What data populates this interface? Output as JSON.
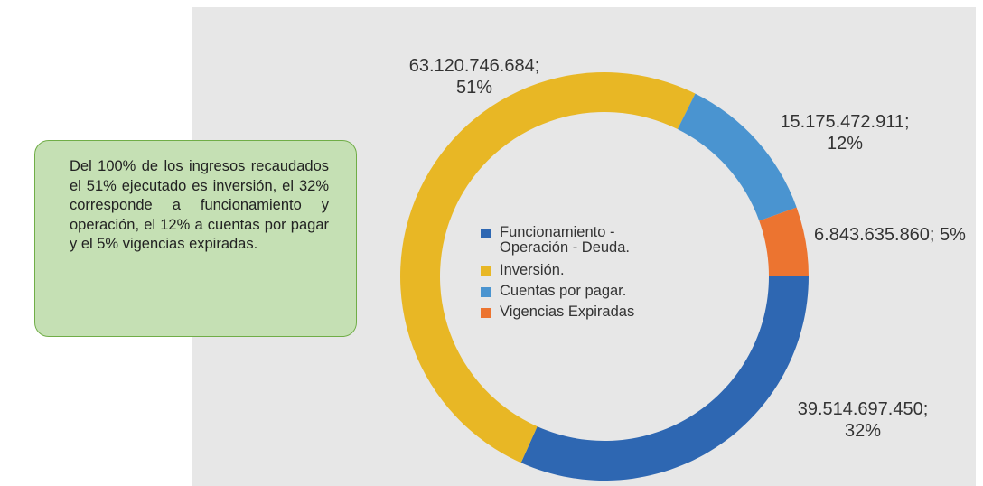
{
  "chart_data": {
    "type": "donut",
    "annotation": "Del 100% de los ingresos recaudados el 51% ejecutado es inversión, el 32% corresponde a funcionamiento y operación, el 12% a cuentas por pagar y el 5% vigencias expiradas.",
    "series": [
      {
        "name": "Funcionamiento - Operación - Deuda.",
        "color": "#2e67b2",
        "values": [
          39514697450
        ],
        "value_labels": [
          "39.514.697.450; 32%"
        ]
      },
      {
        "name": "Inversión.",
        "color": "#e8b725",
        "values": [
          63120746684
        ],
        "value_labels": [
          "63.120.746.684; 51%"
        ]
      },
      {
        "name": "Cuentas por pagar.",
        "color": "#4a94d0",
        "values": [
          15175472911
        ],
        "value_labels": [
          "15.175.472.911; 12%"
        ]
      },
      {
        "name": "Vigencias Expiradas",
        "color": "#ec7430",
        "values": [
          6843635860
        ],
        "value_labels": [
          "6.843.635.860; 5%"
        ]
      }
    ],
    "legend": "center"
  }
}
